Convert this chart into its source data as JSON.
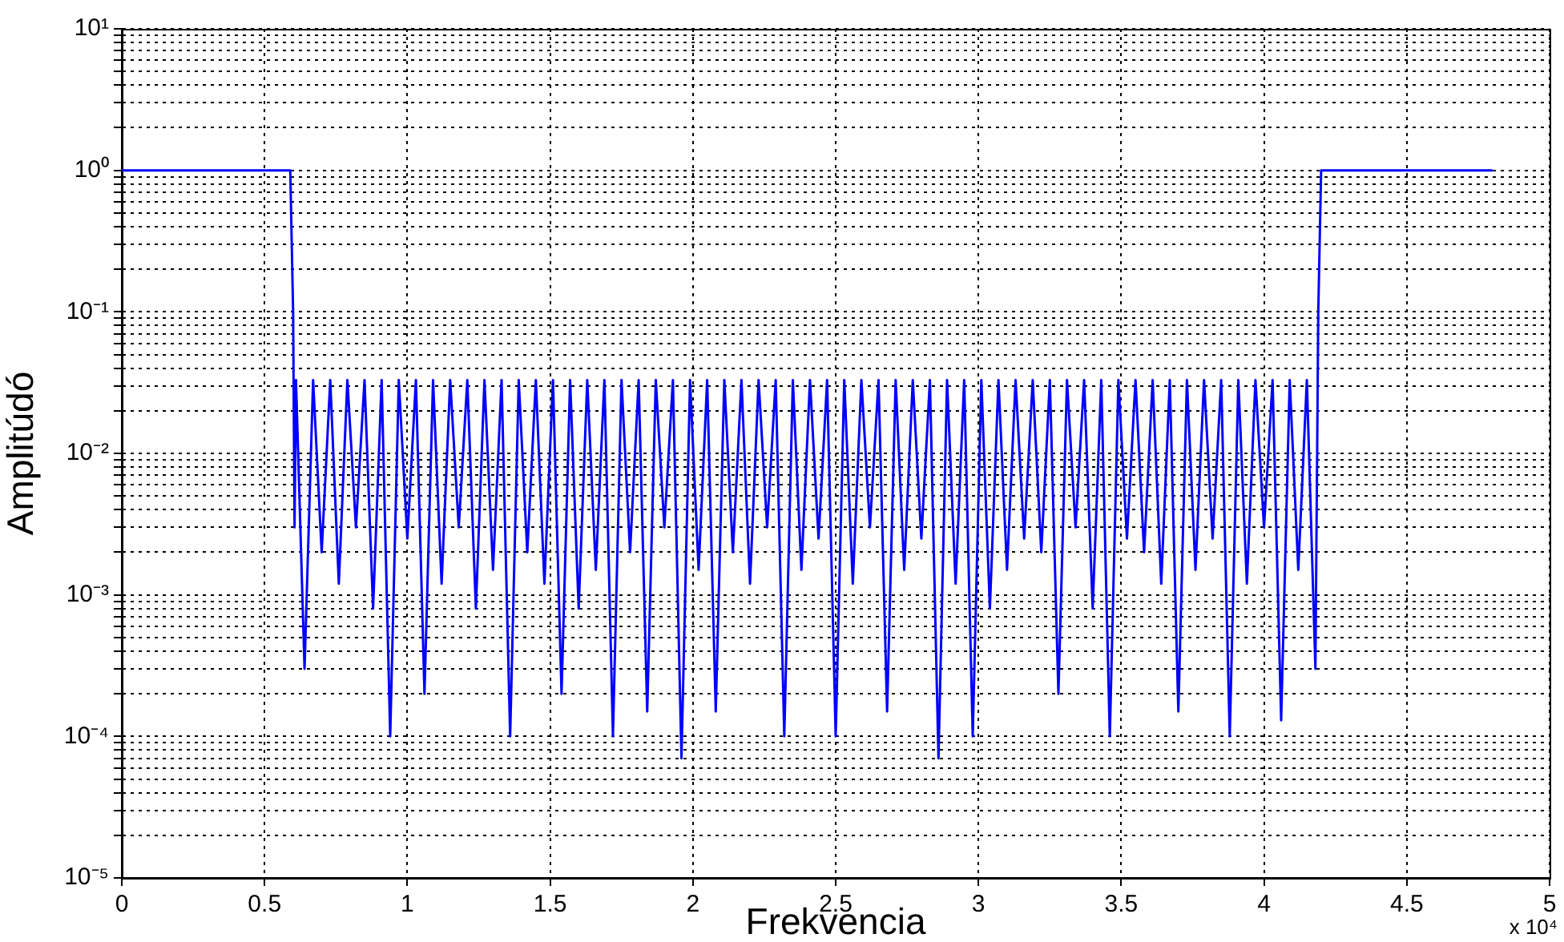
{
  "chart_data": {
    "type": "line",
    "xlabel": "Frekvencia",
    "ylabel": "Amplitúdó",
    "annotations": [
      "x 10⁴"
    ],
    "log": "y",
    "grid": true,
    "marker": "none",
    "line_style": "solid",
    "legend": false,
    "xlim": [
      0,
      5
    ],
    "xticks": [
      0,
      {
        "value": 0.5,
        "label": "0.5"
      },
      1,
      {
        "value": 1.5,
        "label": "1.5"
      },
      2,
      {
        "value": 2.5,
        "label": "2.5"
      },
      3,
      {
        "value": 3.5,
        "label": "3.5"
      },
      4,
      {
        "value": 4.5,
        "label": "4.5"
      },
      5
    ],
    "ylim": [
      1e-05,
      10
    ],
    "yticks": [
      {
        "value": 1e-05,
        "label": "10⁻⁵"
      },
      {
        "value": 2e-05,
        "label": null
      },
      {
        "value": 3e-05,
        "label": null
      },
      {
        "value": 4e-05,
        "label": null
      },
      {
        "value": 5e-05,
        "label": null
      },
      {
        "value": 6e-05,
        "label": null
      },
      {
        "value": 7e-05,
        "label": null
      },
      {
        "value": 8e-05,
        "label": null
      },
      {
        "value": 9e-05,
        "label": null
      },
      {
        "value": 0.0001,
        "label": "10⁻⁴"
      },
      {
        "value": 0.0002,
        "label": null
      },
      {
        "value": 0.0003,
        "label": null
      },
      {
        "value": 0.0004,
        "label": null
      },
      {
        "value": 0.0005,
        "label": null
      },
      {
        "value": 0.0006,
        "label": null
      },
      {
        "value": 0.0007,
        "label": null
      },
      {
        "value": 0.0008,
        "label": null
      },
      {
        "value": 0.0009,
        "label": null
      },
      {
        "value": 0.001,
        "label": "10⁻³"
      },
      {
        "value": 0.002,
        "label": null
      },
      {
        "value": 0.003,
        "label": null
      },
      {
        "value": 0.004,
        "label": null
      },
      {
        "value": 0.005,
        "label": null
      },
      {
        "value": 0.006,
        "label": null
      },
      {
        "value": 0.007,
        "label": null
      },
      {
        "value": 0.008,
        "label": null
      },
      {
        "value": 0.009,
        "label": null
      },
      {
        "value": 0.01,
        "label": "10⁻²"
      },
      {
        "value": 0.02,
        "label": null
      },
      {
        "value": 0.03,
        "label": null
      },
      {
        "value": 0.04,
        "label": null
      },
      {
        "value": 0.05,
        "label": null
      },
      {
        "value": 0.06,
        "label": null
      },
      {
        "value": 0.07,
        "label": null
      },
      {
        "value": 0.08,
        "label": null
      },
      {
        "value": 0.09,
        "label": null
      },
      {
        "value": 0.1,
        "label": "10⁻¹"
      },
      {
        "value": 0.2,
        "label": null
      },
      {
        "value": 0.3,
        "label": null
      },
      {
        "value": 0.4,
        "label": null
      },
      {
        "value": 0.5,
        "label": null
      },
      {
        "value": 0.6,
        "label": null
      },
      {
        "value": 0.7,
        "label": null
      },
      {
        "value": 0.8,
        "label": null
      },
      {
        "value": 0.9,
        "label": null
      },
      {
        "value": 1,
        "label": "10⁰"
      },
      {
        "value": 2,
        "label": null
      },
      {
        "value": 3,
        "label": null
      },
      {
        "value": 4,
        "label": null
      },
      {
        "value": 5,
        "label": null
      },
      {
        "value": 6,
        "label": null
      },
      {
        "value": 7,
        "label": null
      },
      {
        "value": 8,
        "label": null
      },
      {
        "value": 9,
        "label": null
      },
      {
        "value": 10,
        "label": "10¹"
      }
    ],
    "series": [
      {
        "color": "#0000ff",
        "x": [
          0,
          0.3,
          0.59,
          0.6,
          0.605,
          0.61,
          0.64,
          0.67,
          0.7,
          0.73,
          0.76,
          0.79,
          0.82,
          0.85,
          0.88,
          0.91,
          0.94,
          0.97,
          1.0,
          1.03,
          1.06,
          1.09,
          1.12,
          1.15,
          1.18,
          1.21,
          1.24,
          1.27,
          1.3,
          1.33,
          1.36,
          1.39,
          1.42,
          1.45,
          1.48,
          1.51,
          1.54,
          1.57,
          1.6,
          1.63,
          1.66,
          1.69,
          1.72,
          1.75,
          1.78,
          1.81,
          1.84,
          1.87,
          1.9,
          1.93,
          1.96,
          1.99,
          2.02,
          2.05,
          2.08,
          2.11,
          2.14,
          2.17,
          2.2,
          2.23,
          2.26,
          2.29,
          2.32,
          2.35,
          2.38,
          2.41,
          2.44,
          2.47,
          2.5,
          2.53,
          2.56,
          2.59,
          2.62,
          2.65,
          2.68,
          2.71,
          2.74,
          2.77,
          2.8,
          2.83,
          2.86,
          2.89,
          2.92,
          2.95,
          2.98,
          3.01,
          3.04,
          3.07,
          3.1,
          3.13,
          3.16,
          3.19,
          3.22,
          3.25,
          3.28,
          3.31,
          3.34,
          3.37,
          3.4,
          3.43,
          3.46,
          3.49,
          3.52,
          3.55,
          3.58,
          3.61,
          3.64,
          3.67,
          3.7,
          3.73,
          3.76,
          3.79,
          3.82,
          3.85,
          3.88,
          3.91,
          3.94,
          3.97,
          4.0,
          4.03,
          4.06,
          4.09,
          4.12,
          4.15,
          4.18,
          4.19,
          4.2,
          4.5,
          4.8
        ],
        "values": [
          1,
          1,
          1,
          0.1,
          0.003,
          0.033,
          0.0003,
          0.033,
          0.002,
          0.033,
          0.0012,
          0.033,
          0.003,
          0.033,
          0.0008,
          0.033,
          0.0001,
          0.033,
          0.0025,
          0.033,
          0.0002,
          0.033,
          0.0012,
          0.033,
          0.003,
          0.033,
          0.0008,
          0.033,
          0.0015,
          0.033,
          0.0001,
          0.033,
          0.002,
          0.033,
          0.0012,
          0.033,
          0.0002,
          0.033,
          0.0008,
          0.033,
          0.0015,
          0.033,
          0.0001,
          0.033,
          0.002,
          0.033,
          0.00015,
          0.033,
          0.003,
          0.033,
          7e-05,
          0.033,
          0.0015,
          0.033,
          0.00015,
          0.033,
          0.002,
          0.033,
          0.0012,
          0.033,
          0.003,
          0.033,
          0.0001,
          0.033,
          0.0015,
          0.033,
          0.0025,
          0.033,
          0.0001,
          0.033,
          0.0012,
          0.033,
          0.003,
          0.033,
          0.00015,
          0.033,
          0.0015,
          0.033,
          0.0025,
          0.033,
          7e-05,
          0.033,
          0.0012,
          0.033,
          0.0001,
          0.033,
          0.0008,
          0.033,
          0.0015,
          0.033,
          0.0025,
          0.033,
          0.002,
          0.033,
          0.0002,
          0.033,
          0.003,
          0.033,
          0.0008,
          0.033,
          0.0001,
          0.033,
          0.0025,
          0.033,
          0.002,
          0.033,
          0.0012,
          0.033,
          0.00015,
          0.033,
          0.0015,
          0.033,
          0.0025,
          0.033,
          0.0001,
          0.033,
          0.0012,
          0.033,
          0.003,
          0.033,
          0.00013,
          0.033,
          0.0015,
          0.033,
          0.0003,
          0.1,
          1,
          1,
          1
        ]
      }
    ]
  }
}
